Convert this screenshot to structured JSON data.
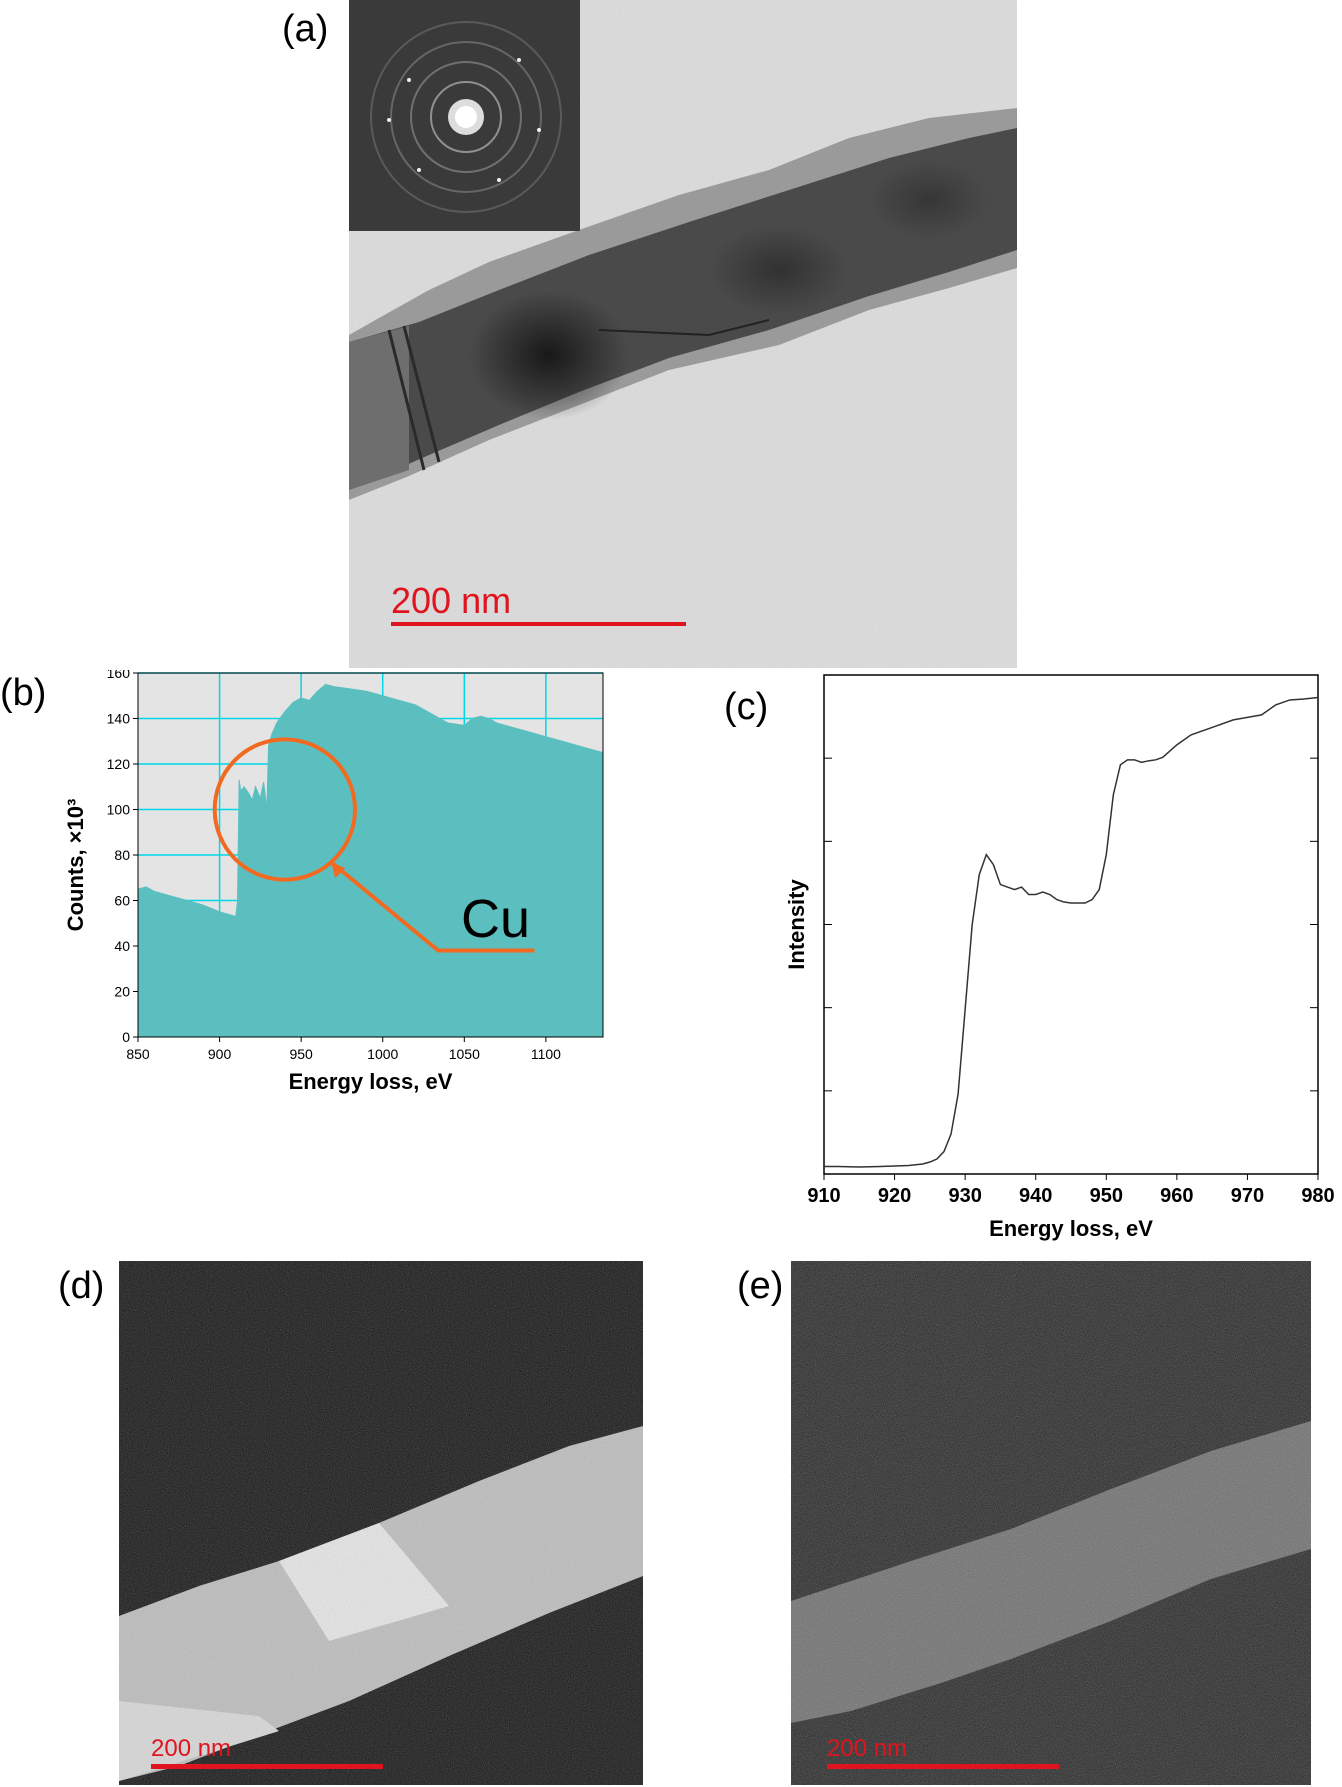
{
  "panels": {
    "a": {
      "label": "(a)",
      "scalebar": "200 nm"
    },
    "b": {
      "label": "(b)"
    },
    "c": {
      "label": "(c)"
    },
    "d": {
      "label": "(d)",
      "scalebar": "200 nm"
    },
    "e": {
      "label": "(e)",
      "scalebar": "200 nm"
    }
  },
  "colors": {
    "fill": "#5bbfbf",
    "grid": "#00d8e8",
    "annotation": "#f26a21",
    "scalebar": "#e0141e"
  },
  "chart_data": [
    {
      "type": "area",
      "panel": "b",
      "xlabel": "Energy loss, eV",
      "ylabel": "Counts, ×10³",
      "xlim": [
        850,
        1135
      ],
      "ylim": [
        0,
        160
      ],
      "xticks": [
        850,
        900,
        950,
        1000,
        1050,
        1100
      ],
      "yticks": [
        0,
        20,
        40,
        60,
        80,
        100,
        120,
        140,
        160
      ],
      "grid": true,
      "annotation": {
        "text": "Cu",
        "circle_center": [
          940,
          100
        ],
        "circle_radius_x": 43
      },
      "x": [
        850,
        855,
        860,
        870,
        880,
        890,
        900,
        905,
        910,
        911,
        912,
        913,
        915,
        918,
        920,
        922,
        925,
        927,
        929,
        930,
        932,
        935,
        940,
        945,
        950,
        955,
        960,
        965,
        970,
        980,
        990,
        1000,
        1010,
        1020,
        1030,
        1040,
        1050,
        1055,
        1060,
        1065,
        1070,
        1080,
        1090,
        1100,
        1110,
        1120,
        1130,
        1135
      ],
      "y": [
        65,
        66,
        64,
        62,
        60,
        58,
        55,
        54,
        53,
        60,
        113,
        108,
        110,
        107,
        104,
        110,
        105,
        112,
        100,
        128,
        133,
        138,
        143,
        147,
        149,
        148,
        152,
        155,
        154,
        153,
        152,
        150,
        148,
        146,
        142,
        138,
        137,
        140,
        141,
        140,
        138,
        136,
        134,
        132,
        130,
        128,
        126,
        125
      ]
    },
    {
      "type": "line",
      "panel": "c",
      "xlabel": "Energy loss, eV",
      "ylabel": "Intensity",
      "xlim": [
        910,
        980
      ],
      "ylim": [
        0,
        100
      ],
      "xticks": [
        910,
        920,
        930,
        940,
        950,
        960,
        970,
        980
      ],
      "grid": false,
      "x": [
        910,
        912,
        915,
        918,
        920,
        922,
        924,
        925,
        926,
        927,
        928,
        929,
        930,
        931,
        932,
        933,
        934,
        935,
        936,
        937,
        938,
        939,
        940,
        941,
        942,
        943,
        944,
        945,
        946,
        947,
        948,
        949,
        950,
        951,
        952,
        953,
        954,
        955,
        956,
        957,
        958,
        960,
        962,
        965,
        968,
        970,
        972,
        974,
        976,
        978,
        980
      ],
      "y": [
        1.5,
        1.5,
        1.4,
        1.5,
        1.6,
        1.7,
        2.0,
        2.4,
        3.0,
        4.5,
        8,
        16,
        33,
        50,
        60,
        64,
        62,
        58,
        57.5,
        57,
        57.5,
        56,
        56,
        56.5,
        56,
        55,
        54.5,
        54.3,
        54.3,
        54.3,
        55,
        57,
        64,
        76,
        82,
        83,
        83,
        82.5,
        82.8,
        83,
        83.5,
        86,
        88,
        89.5,
        91,
        91.5,
        92,
        94,
        95,
        95.2,
        95.5
      ]
    }
  ]
}
